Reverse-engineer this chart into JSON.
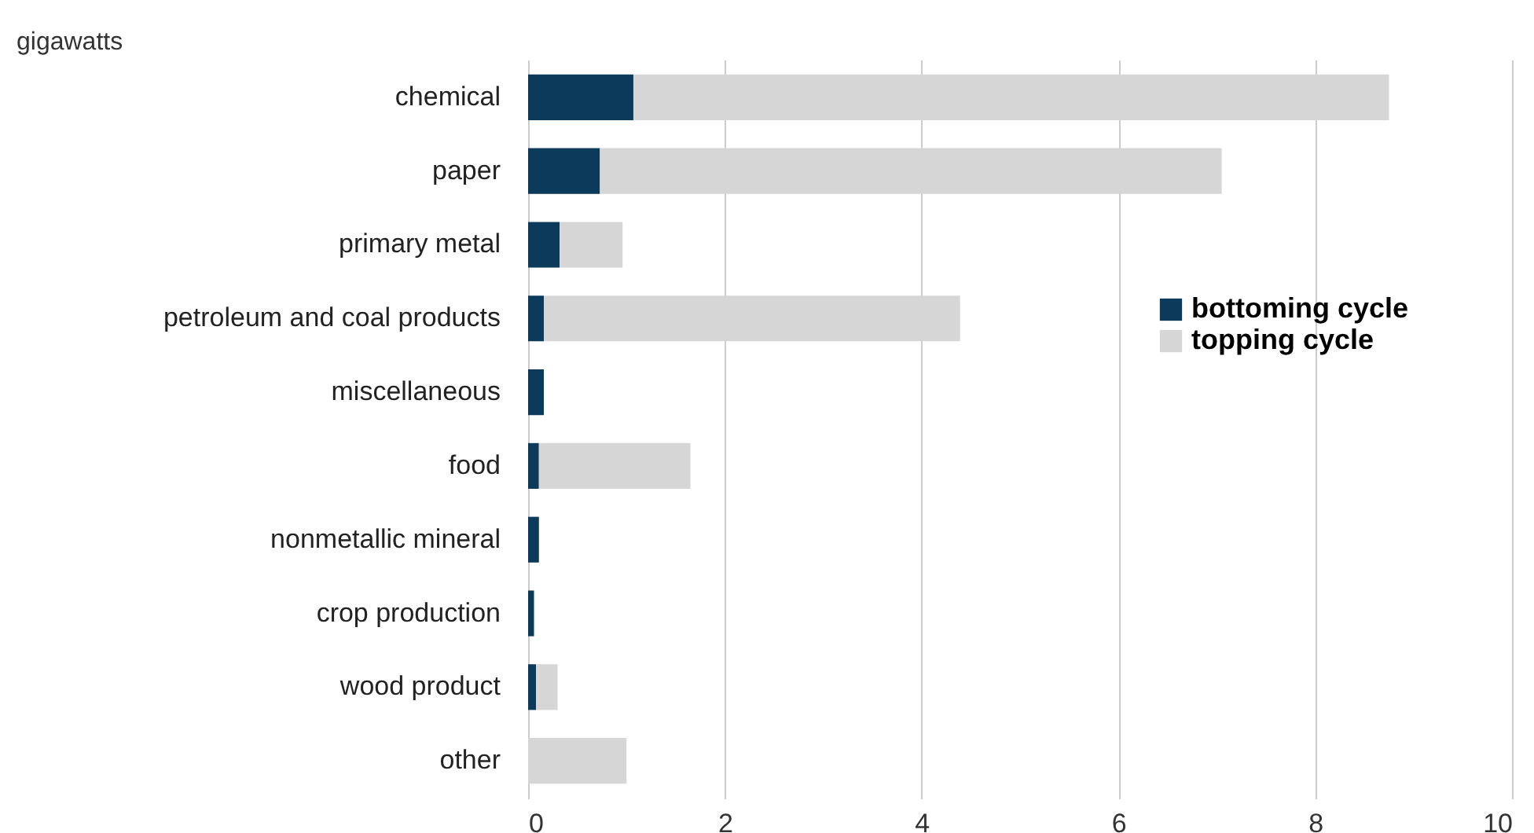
{
  "chart_data": {
    "type": "bar",
    "orientation": "horizontal",
    "stacked": true,
    "ylabel": "gigawatts",
    "categories": [
      "chemical",
      "paper",
      "primary metal",
      "petroleum and coal products",
      "miscellaneous",
      "food",
      "nonmetallic mineral",
      "crop production",
      "wood product",
      "other"
    ],
    "series": [
      {
        "name": "bottoming cycle",
        "color": "#0b3a5a",
        "values": [
          1.07,
          0.73,
          0.32,
          0.16,
          0.16,
          0.11,
          0.11,
          0.06,
          0.08,
          0
        ]
      },
      {
        "name": "topping cycle",
        "color": "#d6d6d6",
        "values": [
          7.68,
          6.32,
          0.64,
          4.23,
          0,
          1.54,
          0,
          0,
          0.22,
          1.0
        ]
      }
    ],
    "xlim": [
      0,
      10
    ],
    "xticks": [
      0,
      2,
      4,
      6,
      8,
      10
    ],
    "grid": "x",
    "legend": "right"
  }
}
